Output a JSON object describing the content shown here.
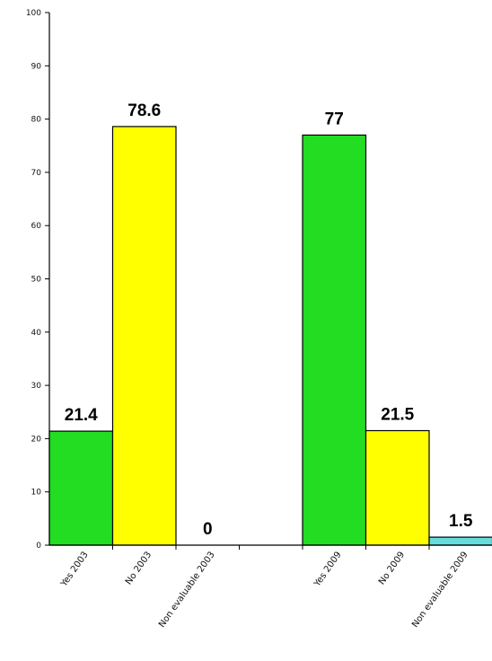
{
  "chart_data": {
    "type": "bar",
    "categories": [
      "Yes 2003",
      "No 2003",
      "Non evaluable 2003",
      "",
      "Yes 2009",
      "No 2009",
      "Non evaluable 2009"
    ],
    "values": [
      21.4,
      78.6,
      0,
      null,
      77,
      21.5,
      1.5
    ],
    "data_labels": [
      "21.4",
      "78.6",
      "0",
      "",
      "77",
      "21.5",
      "1.5"
    ],
    "bar_colors": [
      "#22dd22",
      "#ffff00",
      "#66dddd",
      "",
      "#22dd22",
      "#ffff00",
      "#66dddd"
    ],
    "ylim": [
      0,
      100
    ],
    "yticks": [
      "0",
      "10",
      "20",
      "30",
      "40",
      "50",
      "60",
      "70",
      "80",
      "90",
      "100"
    ],
    "title": "",
    "xlabel": "",
    "ylabel": "",
    "grid": false,
    "legend": "none"
  }
}
